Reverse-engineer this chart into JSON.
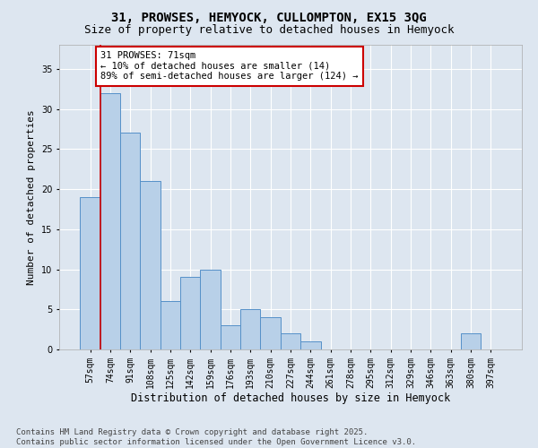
{
  "title": "31, PROWSES, HEMYOCK, CULLOMPTON, EX15 3QG",
  "subtitle": "Size of property relative to detached houses in Hemyock",
  "xlabel": "Distribution of detached houses by size in Hemyock",
  "ylabel": "Number of detached properties",
  "categories": [
    "57sqm",
    "74sqm",
    "91sqm",
    "108sqm",
    "125sqm",
    "142sqm",
    "159sqm",
    "176sqm",
    "193sqm",
    "210sqm",
    "227sqm",
    "244sqm",
    "261sqm",
    "278sqm",
    "295sqm",
    "312sqm",
    "329sqm",
    "346sqm",
    "363sqm",
    "380sqm",
    "397sqm"
  ],
  "values": [
    19,
    32,
    27,
    21,
    6,
    9,
    10,
    3,
    5,
    4,
    2,
    1,
    0,
    0,
    0,
    0,
    0,
    0,
    0,
    2,
    0
  ],
  "bar_color": "#b8d0e8",
  "bar_edge_color": "#5590c8",
  "background_color": "#dde6f0",
  "grid_color": "#ffffff",
  "annotation_text": "31 PROWSES: 71sqm\n← 10% of detached houses are smaller (14)\n89% of semi-detached houses are larger (124) →",
  "annotation_box_color": "#ffffff",
  "annotation_box_edge": "#cc0000",
  "redline_x": 0.5,
  "ylim": [
    0,
    38
  ],
  "yticks": [
    0,
    5,
    10,
    15,
    20,
    25,
    30,
    35
  ],
  "footer_text": "Contains HM Land Registry data © Crown copyright and database right 2025.\nContains public sector information licensed under the Open Government Licence v3.0.",
  "title_fontsize": 10,
  "subtitle_fontsize": 9,
  "xlabel_fontsize": 8.5,
  "ylabel_fontsize": 8,
  "tick_fontsize": 7,
  "annotation_fontsize": 7.5,
  "footer_fontsize": 6.5
}
